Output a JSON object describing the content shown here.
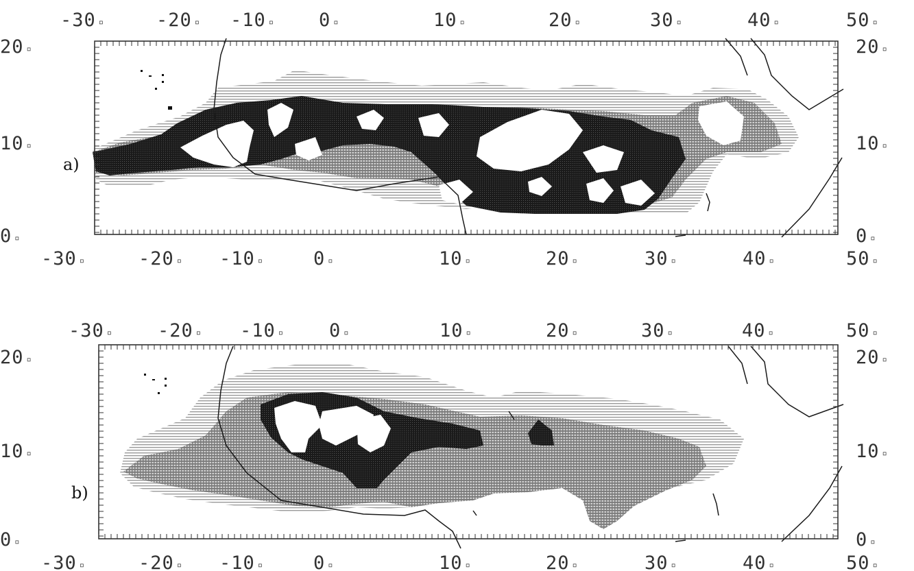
{
  "x_tick_labels": [
    "-30",
    "-20",
    "-10",
    "0",
    "10",
    "20",
    "30",
    "40",
    "50"
  ],
  "y_tick_labels": [
    "0",
    "10",
    "20"
  ],
  "x_tick_values": [
    -30,
    -20,
    -10,
    0,
    10,
    20,
    30,
    40,
    50
  ],
  "y_tick_values": [
    0,
    10,
    20
  ],
  "degree_marker": "▫",
  "colors": {
    "frame": "#222222",
    "coast": "#1a1a1a",
    "shade_light": "#bdbdbd",
    "shade_mid": "#8c8c8c",
    "shade_dark": "#151515"
  },
  "panels": [
    {
      "label": "a)"
    },
    {
      "label": "b)"
    }
  ],
  "chart_data": {
    "type": "heatmap",
    "xlim": [
      -33,
      52
    ],
    "ylim": [
      0,
      20
    ],
    "grid": false
  }
}
